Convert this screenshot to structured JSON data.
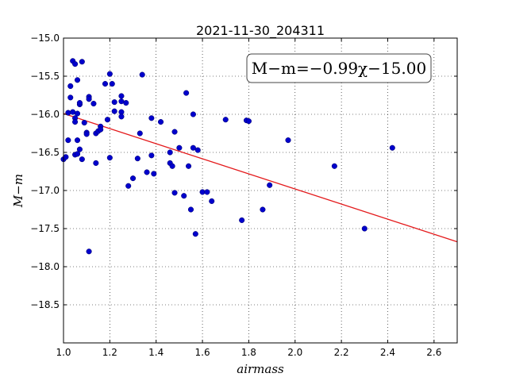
{
  "chart_data": {
    "type": "scatter",
    "title": "2021-11-30_204311",
    "xlabel": "airmass",
    "ylabel": "M−m",
    "xlim": [
      1.0,
      2.7
    ],
    "ylim": [
      -15.0,
      -19.0
    ],
    "y_inverted": true,
    "x_ticks": [
      "1.0",
      "1.2",
      "1.4",
      "1.6",
      "1.8",
      "2.0",
      "2.2",
      "2.4",
      "2.6"
    ],
    "y_ticks": [
      "−15.0",
      "−15.5",
      "−16.0",
      "−16.5",
      "−17.0",
      "−17.5",
      "−18.0",
      "−18.5"
    ],
    "grid": true,
    "annotation": "M−m=−0.99χ−15.00",
    "fit": {
      "slope": -0.99,
      "intercept": -15.0,
      "color": "#e41a1c"
    },
    "point_color": "#0000cc",
    "points": [
      [
        1.0,
        -16.59
      ],
      [
        1.01,
        -16.56
      ],
      [
        1.02,
        -16.34
      ],
      [
        1.02,
        -15.98
      ],
      [
        1.03,
        -15.63
      ],
      [
        1.03,
        -15.78
      ],
      [
        1.04,
        -15.3
      ],
      [
        1.04,
        -15.97
      ],
      [
        1.05,
        -15.34
      ],
      [
        1.05,
        -16.05
      ],
      [
        1.05,
        -16.1
      ],
      [
        1.05,
        -16.53
      ],
      [
        1.06,
        -15.55
      ],
      [
        1.06,
        -15.99
      ],
      [
        1.06,
        -16.34
      ],
      [
        1.06,
        -16.52
      ],
      [
        1.07,
        -15.87
      ],
      [
        1.07,
        -15.85
      ],
      [
        1.07,
        -16.46
      ],
      [
        1.08,
        -15.31
      ],
      [
        1.08,
        -16.59
      ],
      [
        1.09,
        -16.11
      ],
      [
        1.1,
        -16.24
      ],
      [
        1.1,
        -16.26
      ],
      [
        1.11,
        -15.77
      ],
      [
        1.11,
        -15.8
      ],
      [
        1.11,
        -17.8
      ],
      [
        1.13,
        -15.86
      ],
      [
        1.14,
        -16.64
      ],
      [
        1.14,
        -16.25
      ],
      [
        1.15,
        -16.22
      ],
      [
        1.16,
        -16.16
      ],
      [
        1.16,
        -16.2
      ],
      [
        1.18,
        -15.6
      ],
      [
        1.19,
        -16.07
      ],
      [
        1.2,
        -16.57
      ],
      [
        1.2,
        -15.47
      ],
      [
        1.21,
        -15.6
      ],
      [
        1.22,
        -15.84
      ],
      [
        1.22,
        -15.96
      ],
      [
        1.25,
        -15.76
      ],
      [
        1.25,
        -15.83
      ],
      [
        1.25,
        -15.97
      ],
      [
        1.25,
        -16.03
      ],
      [
        1.27,
        -15.85
      ],
      [
        1.28,
        -16.94
      ],
      [
        1.3,
        -16.84
      ],
      [
        1.32,
        -16.58
      ],
      [
        1.33,
        -16.25
      ],
      [
        1.34,
        -15.48
      ],
      [
        1.36,
        -16.76
      ],
      [
        1.38,
        -16.05
      ],
      [
        1.38,
        -16.54
      ],
      [
        1.39,
        -16.78
      ],
      [
        1.42,
        -16.1
      ],
      [
        1.46,
        -16.64
      ],
      [
        1.46,
        -16.5
      ],
      [
        1.47,
        -16.68
      ],
      [
        1.48,
        -16.23
      ],
      [
        1.48,
        -17.03
      ],
      [
        1.5,
        -16.44
      ],
      [
        1.52,
        -17.07
      ],
      [
        1.53,
        -15.72
      ],
      [
        1.54,
        -16.68
      ],
      [
        1.55,
        -17.25
      ],
      [
        1.56,
        -16.44
      ],
      [
        1.56,
        -16.0
      ],
      [
        1.57,
        -17.57
      ],
      [
        1.58,
        -16.47
      ],
      [
        1.6,
        -17.02
      ],
      [
        1.62,
        -17.02
      ],
      [
        1.64,
        -17.14
      ],
      [
        1.7,
        -16.07
      ],
      [
        1.77,
        -17.39
      ],
      [
        1.79,
        -16.08
      ],
      [
        1.8,
        -16.09
      ],
      [
        1.86,
        -17.25
      ],
      [
        1.89,
        -16.93
      ],
      [
        1.97,
        -16.34
      ],
      [
        2.17,
        -16.68
      ],
      [
        2.3,
        -17.5
      ],
      [
        2.42,
        -16.44
      ]
    ]
  }
}
